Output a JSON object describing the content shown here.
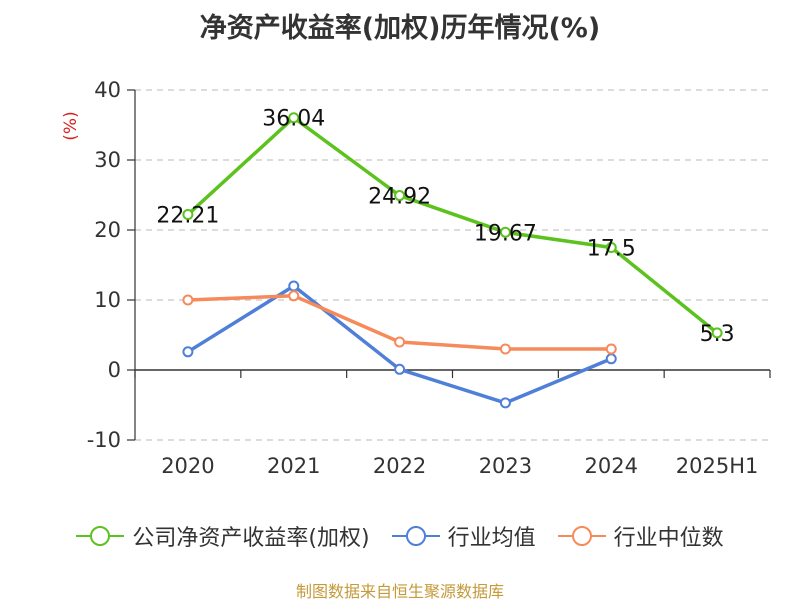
{
  "title": "净资产收益率(加权)历年情况(%)",
  "source": "制图数据来自恒生聚源数据库",
  "chart_data": {
    "type": "line",
    "title": "净资产收益率(加权)历年情况(%)",
    "ylabel": "(%)",
    "xlabel": "",
    "categories": [
      "2020",
      "2021",
      "2022",
      "2023",
      "2024",
      "2025H1"
    ],
    "ylim": [
      -10,
      40
    ],
    "yticks": [
      -10,
      0,
      10,
      20,
      30,
      40
    ],
    "grid": true,
    "legend_position": "bottom",
    "series": [
      {
        "name": "公司净资产收益率(加权)",
        "color": "#5cc21e",
        "values": [
          22.21,
          36.04,
          24.92,
          19.67,
          17.5,
          5.3
        ],
        "labels": [
          "22.21",
          "36.04",
          "24.92",
          "19.67",
          "17.5",
          "5.3"
        ]
      },
      {
        "name": "行业均值",
        "color": "#4f7fd8",
        "values": [
          2.6,
          12.0,
          0.1,
          -4.7,
          1.6,
          null
        ]
      },
      {
        "name": "行业中位数",
        "color": "#f68a5a",
        "values": [
          10.0,
          10.6,
          4.0,
          3.0,
          3.0,
          null
        ]
      }
    ]
  }
}
